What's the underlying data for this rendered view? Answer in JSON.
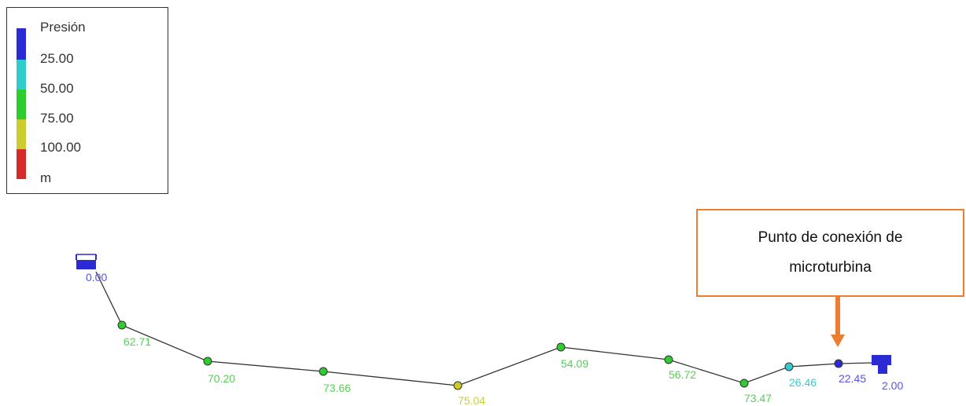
{
  "legend": {
    "title": "Presión",
    "thresholds": [
      "25.00",
      "50.00",
      "75.00",
      "100.00"
    ],
    "unit": "m",
    "colors": [
      "#2b2bd6",
      "#2ecccc",
      "#2ecc2e",
      "#cccc2e",
      "#d62b2b"
    ]
  },
  "colors": {
    "blue": "#2b2bd6",
    "blue_label": "#5555e0",
    "cyan": "#33cccc",
    "green": "#2ecc2e",
    "green_label": "#55d055",
    "yellow": "#cccc22",
    "yellow_label": "#cccc44",
    "pipe": "#333333",
    "callout": "#ed7d31"
  },
  "nodes": [
    {
      "type": "reservoir-icon",
      "value": "0.00"
    },
    {
      "type": "junction",
      "value": "62.71"
    },
    {
      "type": "junction",
      "value": "70.20"
    },
    {
      "type": "junction",
      "value": "73.66"
    },
    {
      "type": "junction",
      "value": "75.04"
    },
    {
      "type": "junction",
      "value": "54.09"
    },
    {
      "type": "junction",
      "value": "56.72"
    },
    {
      "type": "junction",
      "value": "73.47"
    },
    {
      "type": "junction",
      "value": "26.46"
    },
    {
      "type": "junction",
      "value": "22.45"
    },
    {
      "type": "tank-icon",
      "value": "2.00"
    }
  ],
  "callout": {
    "text_line1": "Punto de conexión de",
    "text_line2": "microturbina"
  }
}
